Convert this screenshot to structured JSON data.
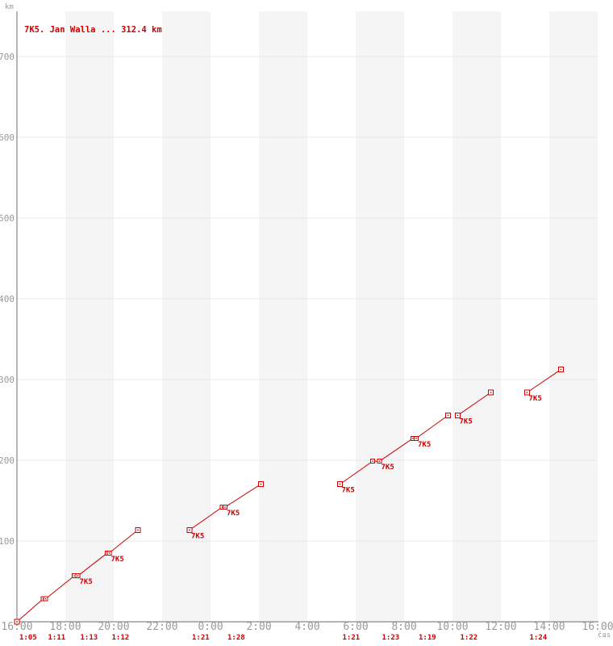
{
  "chart_data": {
    "type": "line",
    "title": "7K5. Jan Walla ... 312.4 km",
    "ylabel": "km",
    "xlabel": "čas",
    "colors": {
      "series": "#cc0000",
      "axis": "#6e6e6e",
      "tick_text": "#9b9b9b",
      "grid": "#e8e8e8",
      "stripe": "#f5f5f5",
      "marker_fill": "#ffffff"
    },
    "x_axis": {
      "start": "16:00",
      "hours_span": 24,
      "tick_interval_hours": 2,
      "tick_labels": [
        "16:00",
        "18:00",
        "20:00",
        "22:00",
        "0:00",
        "2:00",
        "4:00",
        "6:00",
        "8:00",
        "10:00",
        "12:00",
        "14:00",
        "16:00"
      ]
    },
    "y_axis": {
      "min": 0,
      "max": 756,
      "tick_values": [
        100,
        200,
        300,
        400,
        500,
        600,
        700
      ],
      "tick_labels": [
        "100",
        "200",
        "300",
        "400",
        "500",
        "600",
        "700"
      ]
    },
    "shaded_hours": [
      [
        "18:00",
        "20:00"
      ],
      [
        "22:00",
        "0:00"
      ],
      [
        "2:00",
        "4:00"
      ],
      [
        "6:00",
        "8:00"
      ],
      [
        "10:00",
        "12:00"
      ],
      [
        "14:00",
        "16:00"
      ]
    ],
    "series": [
      {
        "name": "7K5",
        "rider": "Jan Walla",
        "total_km": 312.4,
        "segments": [
          {
            "points": [
              {
                "time": "16:00",
                "km": 0,
                "marker": "single"
              },
              {
                "arrive": "17:05",
                "depart": "17:11",
                "km": 28.4,
                "marker": "double"
              },
              {
                "arrive": "18:22",
                "depart": "18:31",
                "km": 56.8,
                "marker": "double",
                "label": "7K5"
              },
              {
                "arrive": "19:44",
                "depart": "19:49",
                "km": 85.2,
                "marker": "double",
                "label": "7K5"
              },
              {
                "time": "21:00",
                "km": 113.6,
                "marker": "single"
              }
            ]
          },
          {
            "points": [
              {
                "time": "23:08",
                "km": 113.6,
                "marker": "single",
                "label": "7K5"
              },
              {
                "arrive": "0:29",
                "depart": "0:36",
                "km": 142.0,
                "marker": "double",
                "label": "7K5"
              },
              {
                "time": "2:05",
                "km": 170.4,
                "marker": "single"
              }
            ]
          },
          {
            "points": [
              {
                "time": "5:21",
                "km": 170.4,
                "marker": "single",
                "label": "7K5"
              },
              {
                "arrive": "6:42",
                "depart": "6:59",
                "km": 198.8,
                "marker": "double",
                "label": "7K5"
              },
              {
                "arrive": "8:22",
                "depart": "8:30",
                "km": 227.2,
                "marker": "double",
                "label": "7K5"
              },
              {
                "time": "9:49",
                "km": 255.6,
                "marker": "single"
              }
            ]
          },
          {
            "points": [
              {
                "time": "10:13",
                "km": 255.6,
                "marker": "single",
                "label": "7K5"
              },
              {
                "time": "11:35",
                "km": 284.0,
                "marker": "single"
              }
            ]
          },
          {
            "points": [
              {
                "time": "13:05",
                "km": 284.0,
                "marker": "single",
                "label": "7K5"
              },
              {
                "time": "14:29",
                "km": 312.4,
                "marker": "single"
              }
            ]
          }
        ]
      }
    ],
    "leg_times": [
      {
        "label": "1:05",
        "depart": "16:00"
      },
      {
        "label": "1:11",
        "depart": "17:11"
      },
      {
        "label": "1:13",
        "depart": "18:31"
      },
      {
        "label": "1:12",
        "depart": "19:49"
      },
      {
        "label": "1:21",
        "depart": "23:08"
      },
      {
        "label": "1:28",
        "depart": "0:36"
      },
      {
        "label": "1:21",
        "depart": "5:21"
      },
      {
        "label": "1:23",
        "depart": "6:59"
      },
      {
        "label": "1:19",
        "depart": "8:30"
      },
      {
        "label": "1:22",
        "depart": "10:13"
      },
      {
        "label": "1:24",
        "depart": "13:05"
      }
    ]
  }
}
